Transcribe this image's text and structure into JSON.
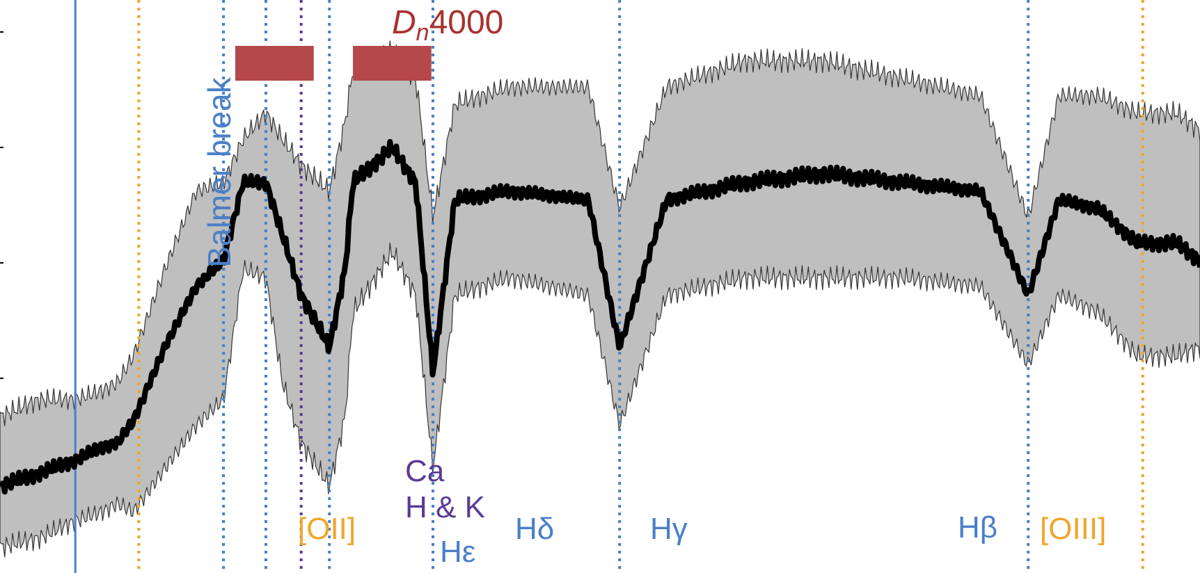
{
  "chart_data": {
    "type": "line",
    "title": "",
    "xlabel": "",
    "ylabel": "",
    "x_unit": "wavelength",
    "xlim": [
      3550,
      5080
    ],
    "ylim": [
      0.4,
      1.06
    ],
    "grid": false,
    "colors": {
      "median": "#000000",
      "band": "#bfbfbf",
      "balmer": "#4a7fc7",
      "emission": "#f0a52a",
      "calcium": "#5b3a96",
      "dn4000": "#b5484a"
    },
    "balmer_break": {
      "label": "Balmer break",
      "x": 3646
    },
    "dn4000": {
      "label_main": "D",
      "label_sub": "n",
      "label_num": "4000",
      "bands": [
        [
          3850,
          3950
        ],
        [
          4000,
          4100
        ]
      ]
    },
    "lines": [
      {
        "id": "oii",
        "label": "[OII]",
        "x": 3727,
        "kind": "emission"
      },
      {
        "id": "h8",
        "label": "",
        "x": 3835,
        "kind": "balmer"
      },
      {
        "id": "h7",
        "label": "",
        "x": 3889,
        "kind": "balmer"
      },
      {
        "id": "cak",
        "label": "",
        "x": 3934,
        "kind": "calcium"
      },
      {
        "id": "heps",
        "label": "Hε",
        "x": 3970,
        "kind": "balmer"
      },
      {
        "id": "hdelta",
        "label": "Hδ",
        "x": 4102,
        "kind": "balmer"
      },
      {
        "id": "hgamma",
        "label": "Hγ",
        "x": 4340,
        "kind": "balmer"
      },
      {
        "id": "hbeta",
        "label": "Hβ",
        "x": 4861,
        "kind": "balmer"
      },
      {
        "id": "oiii",
        "label": "[OIII]",
        "x": 5007,
        "kind": "emission"
      }
    ],
    "ca_label": {
      "line1": "Ca",
      "line2": "H & K"
    },
    "series": [
      {
        "role": "median",
        "x": [
          3550,
          3600,
          3646,
          3680,
          3700,
          3720,
          3760,
          3800,
          3835,
          3860,
          3889,
          3910,
          3934,
          3970,
          3990,
          4000,
          4050,
          4080,
          4102,
          4130,
          4200,
          4300,
          4340,
          4400,
          4500,
          4600,
          4700,
          4800,
          4861,
          4900,
          4950,
          5000,
          5050,
          5080
        ],
        "y": [
          0.5,
          0.515,
          0.53,
          0.545,
          0.55,
          0.575,
          0.66,
          0.73,
          0.76,
          0.85,
          0.85,
          0.79,
          0.72,
          0.66,
          0.75,
          0.85,
          0.89,
          0.85,
          0.63,
          0.83,
          0.84,
          0.83,
          0.66,
          0.83,
          0.85,
          0.86,
          0.85,
          0.84,
          0.72,
          0.83,
          0.82,
          0.78,
          0.78,
          0.76
        ]
      },
      {
        "role": "band_upper",
        "x": [
          3550,
          3600,
          3646,
          3680,
          3700,
          3720,
          3760,
          3800,
          3835,
          3860,
          3889,
          3910,
          3934,
          3970,
          3990,
          4000,
          4050,
          4080,
          4102,
          4130,
          4200,
          4300,
          4340,
          4400,
          4500,
          4600,
          4700,
          4800,
          4861,
          4900,
          4950,
          5000,
          5050,
          5080
        ],
        "y": [
          0.58,
          0.6,
          0.6,
          0.61,
          0.62,
          0.65,
          0.75,
          0.84,
          0.85,
          0.9,
          0.93,
          0.9,
          0.87,
          0.84,
          0.92,
          0.98,
          1.0,
          0.97,
          0.81,
          0.94,
          0.96,
          0.96,
          0.82,
          0.96,
          0.99,
          0.99,
          0.97,
          0.95,
          0.81,
          0.95,
          0.95,
          0.93,
          0.93,
          0.91
        ]
      },
      {
        "role": "band_lower",
        "x": [
          3550,
          3600,
          3646,
          3680,
          3700,
          3720,
          3760,
          3800,
          3835,
          3860,
          3889,
          3910,
          3934,
          3970,
          3990,
          4000,
          4050,
          4080,
          4102,
          4130,
          4200,
          4300,
          4340,
          4400,
          4500,
          4600,
          4700,
          4800,
          4861,
          4900,
          4950,
          5000,
          5050,
          5080
        ],
        "y": [
          0.43,
          0.44,
          0.46,
          0.47,
          0.48,
          0.47,
          0.52,
          0.57,
          0.6,
          0.75,
          0.74,
          0.62,
          0.55,
          0.5,
          0.58,
          0.7,
          0.77,
          0.72,
          0.52,
          0.72,
          0.74,
          0.72,
          0.57,
          0.72,
          0.74,
          0.74,
          0.74,
          0.73,
          0.64,
          0.72,
          0.7,
          0.65,
          0.65,
          0.66
        ]
      }
    ]
  }
}
